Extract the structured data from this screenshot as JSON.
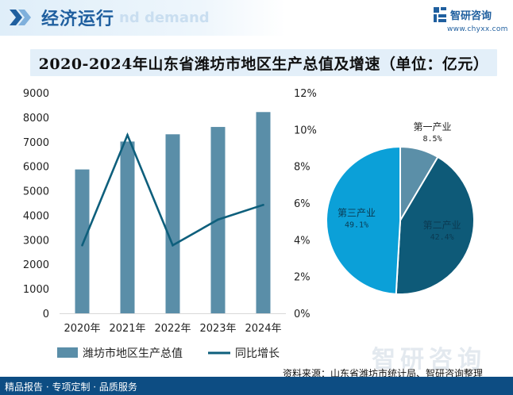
{
  "header": {
    "title": "经济运行",
    "watermark": "nd demand"
  },
  "brand": {
    "name": "智研咨询",
    "url": "www.chyxx.com"
  },
  "footer": {
    "left_text": "精品报告 · 专项定制 · 品质服务",
    "source": "资料来源：山东省潍坊市统计局、智研咨询整理",
    "watermark": "智研咨询"
  },
  "colors": {
    "bar": "#5a8ea8",
    "line": "#0e5f7c",
    "pie_primary": "#5b8fa8",
    "pie_secondary": "#0e5a78",
    "pie_tertiary": "#0ba0d8",
    "footer": "#0d4d83",
    "title_bar": "#e3eff9"
  },
  "chart_data": [
    {
      "type": "bar",
      "title": "2020-2024年山东省潍坊市地区生产总值及增速（单位：亿元）",
      "categories": [
        "2020年",
        "2021年",
        "2022年",
        "2023年",
        "2024年"
      ],
      "series": [
        {
          "name": "潍坊市地区生产总值",
          "type": "bar",
          "axis": "left",
          "values": [
            5872,
            7011,
            7307,
            7606,
            8214
          ]
        },
        {
          "name": "同比增长",
          "type": "line",
          "axis": "right",
          "values": [
            3.7,
            9.7,
            3.7,
            5.1,
            5.9
          ]
        }
      ],
      "y_left": {
        "min": 0,
        "max": 9000,
        "ticks": [
          0,
          1000,
          2000,
          3000,
          4000,
          5000,
          6000,
          7000,
          8000,
          9000
        ]
      },
      "y_right": {
        "min": 0,
        "max": 12,
        "ticks": [
          "0%",
          "2%",
          "4%",
          "6%",
          "8%",
          "10%",
          "12%"
        ]
      },
      "legend": "bottom",
      "grid": false
    },
    {
      "type": "pie",
      "slices": [
        {
          "label": "第一产业",
          "value": 8.5,
          "value_label": "8.5%"
        },
        {
          "label": "第二产业",
          "value": 42.4,
          "value_label": "42.4%"
        },
        {
          "label": "第三产业",
          "value": 49.1,
          "value_label": "49.1%"
        }
      ]
    }
  ]
}
